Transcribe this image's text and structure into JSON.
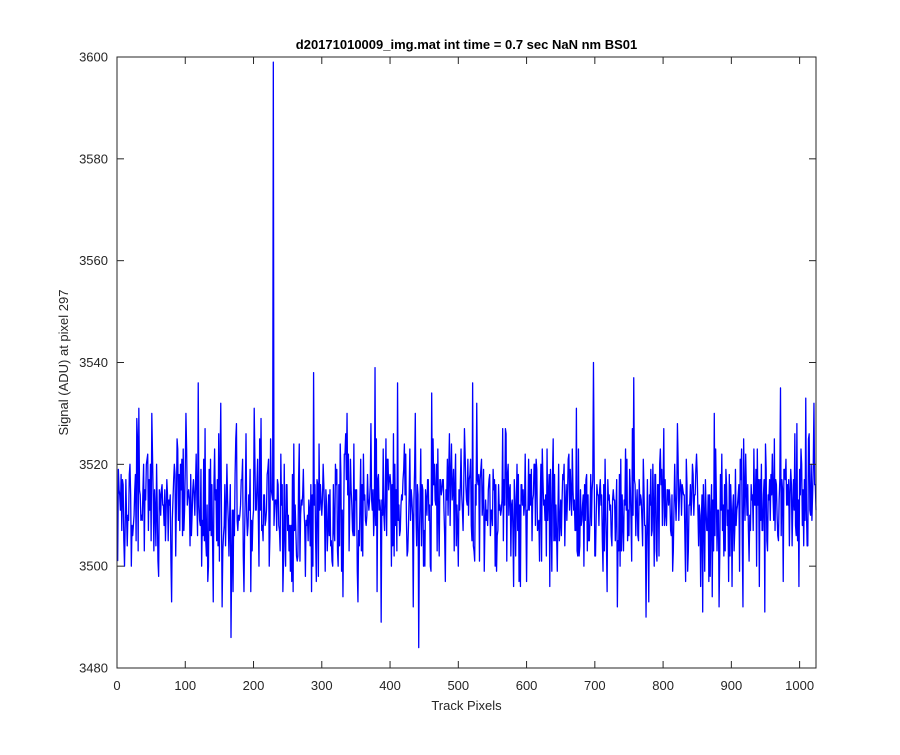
{
  "chart_data": {
    "type": "line",
    "title": "d20171010009_img.mat int time = 0.7 sec  NaN nm BS01",
    "xlabel": "Track Pixels",
    "ylabel": "Signal (ADU) at pixel 297",
    "xlim": [
      0,
      1024
    ],
    "ylim": [
      3480,
      3600
    ],
    "xticks": [
      0,
      100,
      200,
      300,
      400,
      500,
      600,
      700,
      800,
      900,
      1000
    ],
    "yticks": [
      3480,
      3500,
      3520,
      3540,
      3560,
      3580,
      3600
    ],
    "grid": false,
    "line_color": "#0000ff",
    "noise": {
      "n_points": 1024,
      "mean": 3512,
      "std": 7,
      "seed": 20171010
    },
    "series": [
      {
        "x": [
          0,
          10,
          20,
          31,
          60,
          85,
          100,
          118,
          132,
          140,
          166,
          185,
          200,
          210,
          222,
          226,
          228,
          230,
          246,
          257,
          275,
          287,
          336,
          352,
          377,
          380,
          386,
          410,
          433,
          441,
          460,
          480,
          508,
          520,
          553,
          580,
          620,
          650,
          672,
          697,
          700,
          736,
          756,
          774,
          778,
          786,
          800,
          820,
          857,
          866,
          874,
          900,
          916,
          948,
          971,
          975,
          998,
          1008,
          1020
        ],
        "y": [
          3501,
          3500,
          3500,
          3531,
          3498,
          3502,
          3530,
          3536,
          3497,
          3493,
          3486,
          3495,
          3531,
          3529,
          3500,
          3514,
          3599,
          3512,
          3500,
          3495,
          3498,
          3538,
          3530,
          3493,
          3539,
          3495,
          3489,
          3536,
          3492,
          3484,
          3534,
          3497,
          3527,
          3536,
          3500,
          3496,
          3520,
          3506,
          3531,
          3540,
          3502,
          3500,
          3537,
          3490,
          3493,
          3500,
          3527,
          3528,
          3491,
          3497,
          3530,
          3496,
          3492,
          3491,
          3535,
          3497,
          3496,
          3533,
          3532
        ]
      }
    ]
  }
}
